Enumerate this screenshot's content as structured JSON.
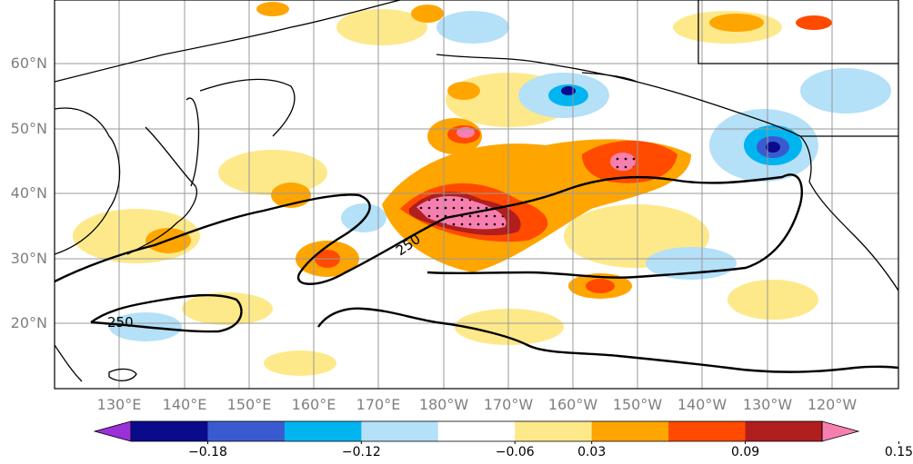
{
  "map": {
    "projection": "equirectangular",
    "lat_labels": [
      "60°N",
      "50°N",
      "40°N",
      "30°N",
      "20°N"
    ],
    "lon_labels": [
      "130°E",
      "140°E",
      "150°E",
      "160°E",
      "170°E",
      "180°W",
      "170°W",
      "160°W",
      "150°W",
      "140°W",
      "130°W",
      "120°W"
    ],
    "contour_label": "250",
    "grid": true,
    "coastline_color": "#000000"
  },
  "colorbar": {
    "colors": [
      "#9b30d8",
      "#0a0a8c",
      "#3a5bd0",
      "#00b4f0",
      "#b4e0f8",
      "#ffffff",
      "#fde98a",
      "#ffa500",
      "#ff4a00",
      "#b01e1e",
      "#f77fb0"
    ],
    "tick_labels": [
      "−0.18",
      "−0.12",
      "−0.06",
      "0.03",
      "0.09",
      "0.15"
    ],
    "extend": "both"
  }
}
